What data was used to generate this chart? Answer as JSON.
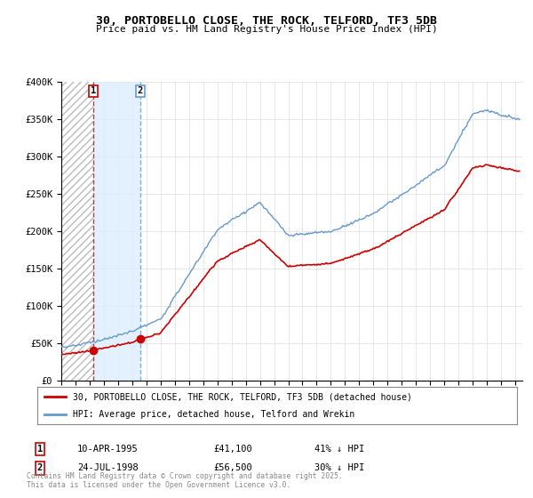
{
  "title": "30, PORTOBELLO CLOSE, THE ROCK, TELFORD, TF3 5DB",
  "subtitle": "Price paid vs. HM Land Registry's House Price Index (HPI)",
  "legend_label_red": "30, PORTOBELLO CLOSE, THE ROCK, TELFORD, TF3 5DB (detached house)",
  "legend_label_blue": "HPI: Average price, detached house, Telford and Wrekin",
  "sale1_date": "10-APR-1995",
  "sale1_price": 41100,
  "sale1_pct": "41% ↓ HPI",
  "sale2_date": "24-JUL-1998",
  "sale2_price": 56500,
  "sale2_pct": "30% ↓ HPI",
  "footer": "Contains HM Land Registry data © Crown copyright and database right 2025.\nThis data is licensed under the Open Government Licence v3.0.",
  "sale1_x": 1995.27,
  "sale2_x": 1998.56,
  "ylim_min": 0,
  "ylim_max": 400000,
  "xlim_min": 1993.0,
  "xlim_max": 2025.5,
  "color_red": "#cc0000",
  "color_blue": "#6699cc",
  "color_dashed": "#cc0000",
  "color_dashed2": "#6699cc",
  "hatch_color": "#aaaaaa",
  "span2_color": "#ddeeff"
}
